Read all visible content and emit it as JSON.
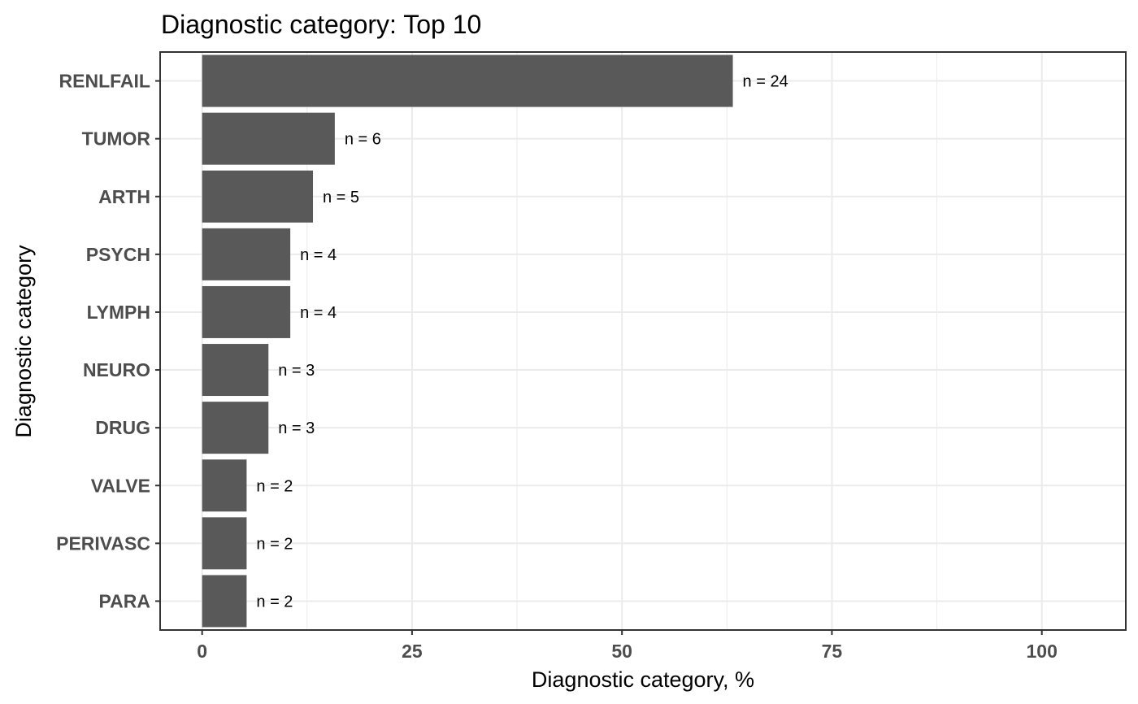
{
  "chart_data": {
    "type": "bar",
    "orientation": "horizontal",
    "title": "Diagnostic category: Top 10",
    "xlabel": "Diagnostic category, %",
    "ylabel": "Diagnostic category",
    "categories": [
      "RENLFAIL",
      "TUMOR",
      "ARTH",
      "PSYCH",
      "LYMPH",
      "NEURO",
      "DRUG",
      "VALVE",
      "PERIVASC",
      "PARA"
    ],
    "values": [
      63.2,
      15.8,
      13.2,
      10.5,
      10.5,
      7.9,
      7.9,
      5.3,
      5.3,
      5.3
    ],
    "labels": [
      "n = 24",
      "n = 6",
      "n = 5",
      "n = 4",
      "n = 4",
      "n = 3",
      "n = 3",
      "n = 2",
      "n = 2",
      "n = 2"
    ],
    "xlim": [
      -5,
      110
    ],
    "xticks": [
      0,
      25,
      50,
      75,
      100
    ],
    "xtick_labels": [
      "0",
      "25",
      "50",
      "75",
      "100"
    ],
    "grid": true,
    "colors": {
      "bar": "#595959",
      "grid": "#ebebeb",
      "panel_border": "#333333",
      "tick_text": "#4d4d4d"
    }
  }
}
